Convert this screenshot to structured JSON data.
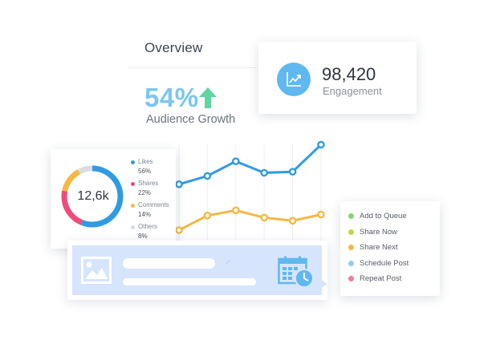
{
  "overview": {
    "title": "Overview",
    "growth_value": "54%",
    "growth_label": "Audience Growth",
    "growth_color": "#7cc6f2",
    "arrow_color": "#5ed6a0"
  },
  "engagement": {
    "value": "98,420",
    "label": "Engagement",
    "icon": "trending-chart-icon",
    "accent": "#5fb8f0"
  },
  "donut": {
    "center_label": "12,6k",
    "segments": [
      {
        "name": "Likes",
        "value": "56%",
        "fraction": 0.56,
        "color": "#2f9be3"
      },
      {
        "name": "Shares",
        "value": "22%",
        "fraction": 0.22,
        "color": "#ee4d7c"
      },
      {
        "name": "Comments",
        "value": "14%",
        "fraction": 0.14,
        "color": "#f5b942"
      },
      {
        "name": "Others",
        "value": "8%",
        "fraction": 0.08,
        "color": "#d9dde3"
      }
    ]
  },
  "chart_data": {
    "type": "line",
    "x": [
      1,
      2,
      3,
      4,
      5,
      6
    ],
    "ylim": [
      0,
      100
    ],
    "grid": "vertical",
    "series": [
      {
        "values": [
          54,
          62,
          76,
          65,
          66,
          92
        ],
        "color": "#2f9be3"
      },
      {
        "values": [
          10,
          24,
          29,
          22,
          19,
          25
        ],
        "color": "#f5b942"
      }
    ]
  },
  "queue": {
    "items": [
      {
        "label": "Add to Queue",
        "color": "#8ad572"
      },
      {
        "label": "Share Now",
        "color": "#c8d44a"
      },
      {
        "label": "Share Next",
        "color": "#f5b942"
      },
      {
        "label": "Schedule Post",
        "color": "#8fcff5"
      },
      {
        "label": "Repeat Post",
        "color": "#f27c8e"
      }
    ]
  },
  "composer": {
    "image_icon": "image-placeholder-icon",
    "schedule_icon": "calendar-clock-icon",
    "accent": "#5fb8f0"
  }
}
